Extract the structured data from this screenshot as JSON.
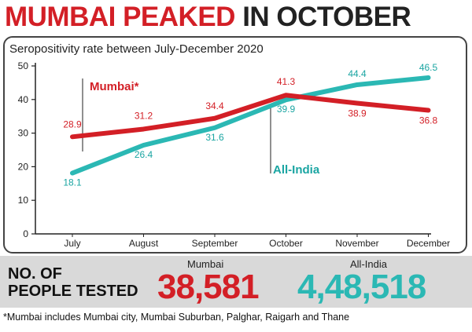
{
  "headline": {
    "part1": "MUMBAI PEAKED",
    "part2": "IN OCTOBER"
  },
  "chart_data": {
    "type": "line",
    "subtitle": "Seropositivity rate between July-December 2020",
    "categories": [
      "July",
      "August",
      "September",
      "October",
      "November",
      "December"
    ],
    "ylim": [
      0,
      50
    ],
    "yticks": [
      0,
      10,
      20,
      30,
      40,
      50
    ],
    "grid": false,
    "series": [
      {
        "name": "Mumbai*",
        "color": "#d31f26",
        "label_color": "#d31f26",
        "values": [
          28.9,
          31.2,
          34.4,
          41.3,
          38.9,
          36.8
        ],
        "labels": [
          "28.9",
          "31.2",
          "34.4",
          "41.3",
          "38.9",
          "36.8"
        ]
      },
      {
        "name": "All-India",
        "color": "#2bb8b4",
        "label_color": "#1aa5a2",
        "values": [
          18.1,
          26.4,
          31.6,
          39.9,
          44.4,
          46.5
        ],
        "labels": [
          "18.1",
          "26.4",
          "31.6",
          "39.9",
          "44.4",
          "46.5"
        ]
      }
    ]
  },
  "people_tested": {
    "label_line1": "NO. OF",
    "label_line2": "PEOPLE TESTED",
    "mumbai_label": "Mumbai",
    "mumbai_value": "38,581",
    "allindia_label": "All-India",
    "allindia_value": "4,48,518",
    "mumbai_color": "#d31f26",
    "allindia_color": "#2bb8b4"
  },
  "footnote": "*Mumbai includes Mumbai city, Mumbai Suburban, Palghar, Raigarh and Thane"
}
